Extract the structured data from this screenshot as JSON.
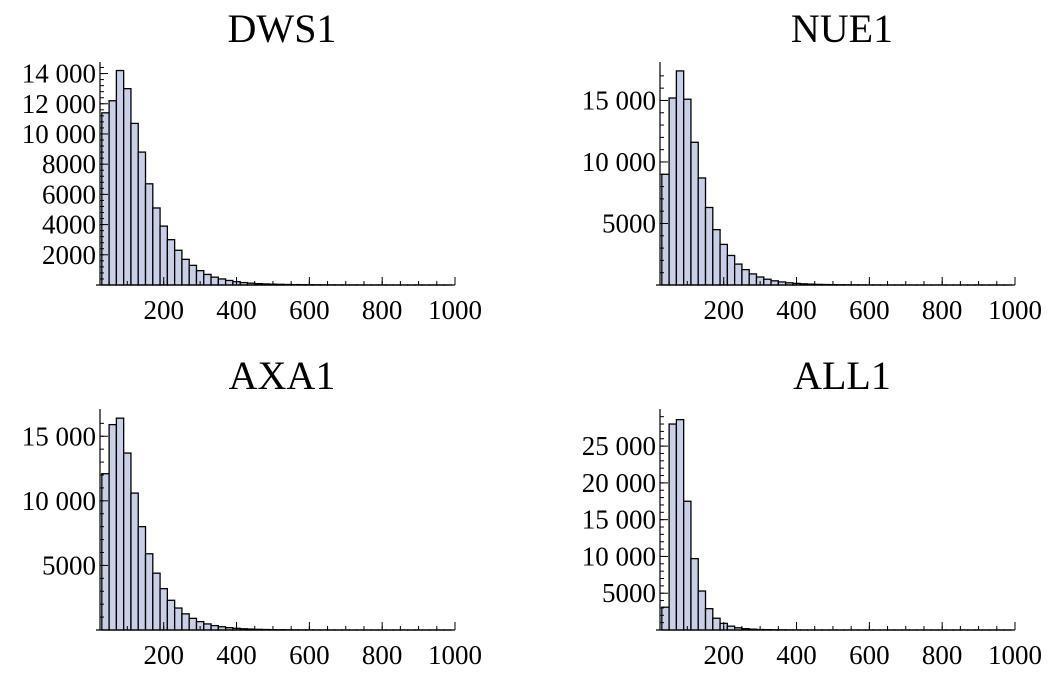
{
  "colors": {
    "bar_fill": "#c9cfe6",
    "bar_stroke": "#000000",
    "axis": "#000000",
    "background": "#ffffff"
  },
  "chart_data": [
    {
      "type": "bar",
      "title": "DWS1",
      "xlabel": "",
      "ylabel": "",
      "bin_width": 20,
      "x_start": 40,
      "xlim": [
        25,
        1000
      ],
      "ylim": [
        0,
        14500
      ],
      "x_ticks": [
        200,
        400,
        600,
        800,
        1000
      ],
      "x_tick_labels": [
        "200",
        "400",
        "600",
        "800",
        "1000"
      ],
      "y_ticks": [
        2000,
        4000,
        6000,
        8000,
        10000,
        12000,
        14000
      ],
      "y_tick_labels": [
        "2000",
        "4000",
        "6000",
        "8000",
        "10 000",
        "12 000",
        "14 000"
      ],
      "y_minor_step": 400,
      "values": [
        11400,
        12200,
        14200,
        13000,
        10700,
        8800,
        6700,
        5100,
        3900,
        3000,
        2300,
        1700,
        1300,
        950,
        700,
        520,
        400,
        300,
        220,
        160,
        120,
        90,
        70,
        55,
        45,
        35,
        28,
        22,
        18,
        14,
        11,
        9,
        7,
        6,
        5,
        4,
        3,
        3,
        2,
        2,
        2,
        1,
        1,
        1,
        1,
        1,
        1,
        1
      ]
    },
    {
      "type": "bar",
      "title": "NUE1",
      "xlabel": "",
      "ylabel": "",
      "bin_width": 20,
      "x_start": 40,
      "xlim": [
        25,
        1000
      ],
      "ylim": [
        0,
        17800
      ],
      "x_ticks": [
        200,
        400,
        600,
        800,
        1000
      ],
      "x_tick_labels": [
        "200",
        "400",
        "600",
        "800",
        "1000"
      ],
      "y_ticks": [
        5000,
        10000,
        15000
      ],
      "y_tick_labels": [
        "5000",
        "10 000",
        "15 000"
      ],
      "y_minor_step": 1000,
      "values": [
        9000,
        15200,
        17400,
        15100,
        11600,
        8700,
        6300,
        4500,
        3300,
        2400,
        1700,
        1250,
        900,
        650,
        470,
        340,
        250,
        180,
        130,
        95,
        70,
        50,
        38,
        28,
        21,
        16,
        12,
        9,
        7,
        5,
        4,
        3,
        3,
        2,
        2,
        2,
        1,
        1,
        1,
        1,
        1,
        1,
        1,
        1,
        1,
        1,
        1,
        1
      ]
    },
    {
      "type": "bar",
      "title": "AXA1",
      "xlabel": "",
      "ylabel": "",
      "bin_width": 20,
      "x_start": 40,
      "xlim": [
        25,
        1000
      ],
      "ylim": [
        0,
        16800
      ],
      "x_ticks": [
        200,
        400,
        600,
        800,
        1000
      ],
      "x_tick_labels": [
        "200",
        "400",
        "600",
        "800",
        "1000"
      ],
      "y_ticks": [
        5000,
        10000,
        15000
      ],
      "y_tick_labels": [
        "5000",
        "10 000",
        "15 000"
      ],
      "y_minor_step": 1000,
      "values": [
        12100,
        15900,
        16400,
        13700,
        10600,
        8000,
        5900,
        4400,
        3200,
        2300,
        1700,
        1250,
        900,
        650,
        470,
        340,
        250,
        180,
        130,
        95,
        70,
        50,
        38,
        28,
        21,
        16,
        12,
        9,
        7,
        5,
        4,
        3,
        3,
        2,
        2,
        2,
        1,
        1,
        1,
        1,
        1,
        1,
        1,
        1,
        1,
        1,
        1,
        1
      ]
    },
    {
      "type": "bar",
      "title": "ALL1",
      "xlabel": "",
      "ylabel": "",
      "bin_width": 20,
      "x_start": 40,
      "xlim": [
        25,
        1000
      ],
      "ylim": [
        0,
        29500
      ],
      "x_ticks": [
        200,
        400,
        600,
        800,
        1000
      ],
      "x_tick_labels": [
        "200",
        "400",
        "600",
        "800",
        "1000"
      ],
      "y_ticks": [
        5000,
        10000,
        15000,
        20000,
        25000
      ],
      "y_tick_labels": [
        "5000",
        "10 000",
        "15 000",
        "20 000",
        "25 000"
      ],
      "y_minor_step": 1000,
      "values": [
        3100,
        28000,
        28600,
        17500,
        9700,
        5300,
        2900,
        1600,
        900,
        520,
        300,
        180,
        110,
        70,
        45,
        30,
        20,
        14,
        10,
        7,
        5,
        4,
        3,
        2,
        2,
        2,
        1,
        1,
        1,
        1,
        1,
        1,
        1,
        1,
        1,
        1,
        1,
        1,
        1,
        1,
        1,
        1,
        1,
        1,
        1,
        1,
        1,
        1
      ]
    }
  ]
}
